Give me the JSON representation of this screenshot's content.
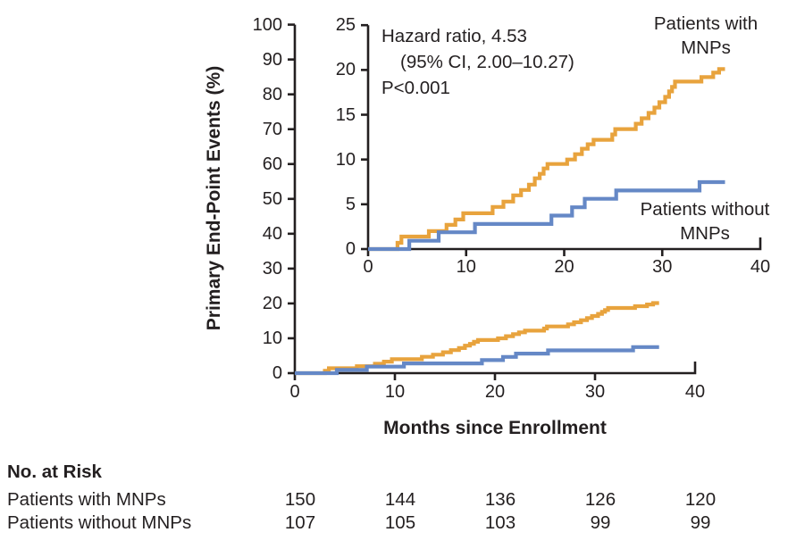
{
  "figure": {
    "y_axis_title": "Primary End-Point Events (%)",
    "x_axis_title": "Months since Enrollment"
  },
  "annotation": {
    "line1": "Hazard ratio, 4.53",
    "line2": "(95% CI, 2.00–10.27)",
    "line3": "P<0.001"
  },
  "series_labels": {
    "with_mnps": [
      "Patients with",
      "MNPs"
    ],
    "without_mnps": [
      "Patients without",
      "MNPs"
    ]
  },
  "risk_table": {
    "title": "No. at Risk",
    "timepoints": [
      0,
      10,
      20,
      30,
      40
    ],
    "rows": [
      {
        "label": "Patients with MNPs",
        "values": [
          "150",
          "144",
          "136",
          "126",
          "120"
        ]
      },
      {
        "label": "Patients without MNPs",
        "values": [
          "107",
          "105",
          "103",
          "99",
          "99"
        ]
      }
    ]
  },
  "colors": {
    "axis": "#231F20",
    "text": "#231F20",
    "background": "#FFFFFF",
    "with_mnps": "#E8A33D",
    "without_mnps": "#6588C6"
  },
  "chart_data": {
    "type": "line",
    "subtype": "kaplan-meier-cumulative-incidence-steps",
    "title": "",
    "xlabel": "Months since Enrollment",
    "ylabel": "Primary End-Point Events (%)",
    "grid": false,
    "legend_position": "inline-labels",
    "annotation": "Hazard ratio, 4.53 (95% CI, 2.00–10.27), P<0.001",
    "main_axis": {
      "xlim": [
        0,
        40
      ],
      "ylim": [
        0,
        100
      ],
      "xticks": [
        0,
        10,
        20,
        30,
        40
      ],
      "yticks": [
        0,
        10,
        20,
        30,
        40,
        50,
        60,
        70,
        80,
        90,
        100
      ]
    },
    "inset_axis": {
      "xlim": [
        0,
        40
      ],
      "ylim": [
        0,
        25
      ],
      "xticks": [
        0,
        10,
        20,
        30,
        40
      ],
      "yticks": [
        0,
        5,
        10,
        15,
        20,
        25
      ]
    },
    "follow_up_end_month": 36.4,
    "series": [
      {
        "name": "Patients with MNPs",
        "color": "#E8A33D",
        "events": [
          [
            3.0,
            0.7
          ],
          [
            3.4,
            1.4
          ],
          [
            6.2,
            2.0
          ],
          [
            8.0,
            2.7
          ],
          [
            8.9,
            3.3
          ],
          [
            9.7,
            4.0
          ],
          [
            12.7,
            4.7
          ],
          [
            13.8,
            5.3
          ],
          [
            14.8,
            6.0
          ],
          [
            15.6,
            6.6
          ],
          [
            16.4,
            7.2
          ],
          [
            17.0,
            7.9
          ],
          [
            17.5,
            8.4
          ],
          [
            17.9,
            9.0
          ],
          [
            18.3,
            9.5
          ],
          [
            20.3,
            10.0
          ],
          [
            21.1,
            10.6
          ],
          [
            21.8,
            11.2
          ],
          [
            22.4,
            11.7
          ],
          [
            23.0,
            12.2
          ],
          [
            24.9,
            12.8
          ],
          [
            25.2,
            13.4
          ],
          [
            27.3,
            14.0
          ],
          [
            27.9,
            14.6
          ],
          [
            28.6,
            15.2
          ],
          [
            29.2,
            15.8
          ],
          [
            29.7,
            16.4
          ],
          [
            30.3,
            17.0
          ],
          [
            30.7,
            17.6
          ],
          [
            31.0,
            18.1
          ],
          [
            31.3,
            18.7
          ],
          [
            34.0,
            19.2
          ],
          [
            35.2,
            19.7
          ],
          [
            35.8,
            20.1
          ]
        ]
      },
      {
        "name": "Patients without MNPs",
        "color": "#6588C6",
        "events": [
          [
            4.2,
            0.93
          ],
          [
            7.2,
            1.87
          ],
          [
            10.9,
            2.8
          ],
          [
            18.7,
            3.74
          ],
          [
            20.8,
            4.67
          ],
          [
            22.1,
            5.61
          ],
          [
            25.3,
            6.54
          ],
          [
            33.8,
            7.48
          ]
        ]
      }
    ]
  }
}
